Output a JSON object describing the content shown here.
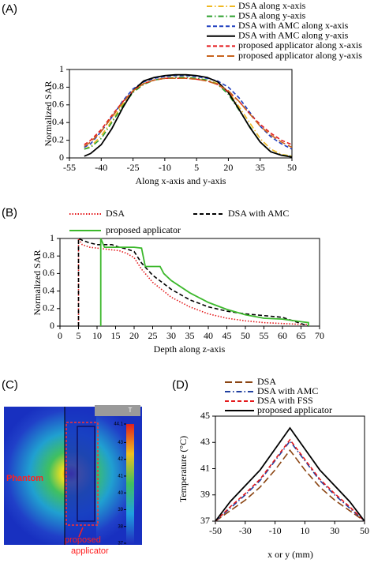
{
  "chart_data": [
    {
      "type": "line",
      "panel_label": "(A)",
      "ylabel": "Normalized SAR",
      "xlabel": "Along x-axis and y-axis",
      "xlim": [
        -55,
        50
      ],
      "xticks": [
        -55,
        -40,
        -25,
        -10,
        5,
        20,
        35,
        50
      ],
      "ylim": [
        0,
        1
      ],
      "yticks": [
        0,
        0.2,
        0.4,
        0.6,
        0.8,
        1
      ],
      "x": [
        -48,
        -45,
        -40,
        -35,
        -30,
        -25,
        -20,
        -15,
        -10,
        -5,
        0,
        5,
        10,
        15,
        20,
        25,
        30,
        35,
        40,
        45,
        50
      ],
      "series": [
        {
          "name": "DSA along x-axis",
          "color": "#f0b820",
          "style": "dashdot",
          "values": [
            0.1,
            0.13,
            0.25,
            0.42,
            0.6,
            0.75,
            0.84,
            0.88,
            0.9,
            0.91,
            0.91,
            0.9,
            0.88,
            0.84,
            0.75,
            0.58,
            0.4,
            0.22,
            0.1,
            0.04,
            0.02
          ]
        },
        {
          "name": "DSA along y-axis",
          "color": "#2ca02c",
          "style": "dashdot",
          "values": [
            0.1,
            0.12,
            0.22,
            0.4,
            0.58,
            0.74,
            0.83,
            0.88,
            0.9,
            0.91,
            0.91,
            0.9,
            0.88,
            0.83,
            0.72,
            0.54,
            0.36,
            0.18,
            0.07,
            0.03,
            0.02
          ]
        },
        {
          "name": "DSA with AMC along x-axis",
          "color": "#1f3fbf",
          "style": "dashed",
          "values": [
            0.12,
            0.16,
            0.3,
            0.46,
            0.64,
            0.78,
            0.86,
            0.9,
            0.92,
            0.93,
            0.93,
            0.92,
            0.9,
            0.87,
            0.8,
            0.68,
            0.52,
            0.36,
            0.24,
            0.16,
            0.1
          ]
        },
        {
          "name": "DSA with AMC along y-axis",
          "color": "#000000",
          "style": "solid",
          "values": [
            0.02,
            0.05,
            0.15,
            0.33,
            0.56,
            0.76,
            0.87,
            0.91,
            0.93,
            0.94,
            0.94,
            0.93,
            0.91,
            0.86,
            0.74,
            0.55,
            0.35,
            0.18,
            0.07,
            0.03,
            0.01
          ]
        },
        {
          "name": "proposed applicator along x-axis",
          "color": "#e41a1c",
          "style": "dashed",
          "values": [
            0.15,
            0.2,
            0.32,
            0.48,
            0.63,
            0.76,
            0.84,
            0.88,
            0.9,
            0.9,
            0.9,
            0.89,
            0.87,
            0.83,
            0.75,
            0.64,
            0.5,
            0.38,
            0.28,
            0.2,
            0.15
          ]
        },
        {
          "name": "proposed applicator along y-axis",
          "color": "#c8641e",
          "style": "longdash",
          "values": [
            0.13,
            0.18,
            0.3,
            0.46,
            0.62,
            0.76,
            0.84,
            0.88,
            0.9,
            0.9,
            0.9,
            0.89,
            0.87,
            0.83,
            0.76,
            0.64,
            0.5,
            0.36,
            0.26,
            0.18,
            0.12
          ]
        }
      ]
    },
    {
      "type": "line",
      "panel_label": "(B)",
      "ylabel": "Normalized SAR",
      "xlabel": "Depth along z-axis",
      "xlim": [
        0,
        70
      ],
      "xticks": [
        0,
        5,
        10,
        15,
        20,
        25,
        30,
        35,
        40,
        45,
        50,
        55,
        60,
        65,
        70
      ],
      "ylim": [
        0,
        1
      ],
      "yticks": [
        0,
        0.2,
        0.4,
        0.6,
        0.8,
        1
      ],
      "series": [
        {
          "name": "DSA",
          "color": "#e41a1c",
          "style": "dotted",
          "x": [
            5,
            5,
            6,
            8,
            10,
            12,
            14,
            16,
            18,
            20,
            22,
            25,
            30,
            35,
            40,
            45,
            50,
            55,
            60,
            65,
            67
          ],
          "values": [
            0,
            1,
            0.93,
            0.9,
            0.89,
            0.88,
            0.87,
            0.86,
            0.83,
            0.78,
            0.65,
            0.5,
            0.33,
            0.22,
            0.14,
            0.09,
            0.06,
            0.04,
            0.03,
            0.02,
            0.02
          ]
        },
        {
          "name": "DSA with AMC",
          "color": "#000000",
          "style": "dashed",
          "x": [
            5,
            5,
            6,
            8,
            10,
            12,
            14,
            16,
            18,
            20,
            22,
            25,
            30,
            35,
            40,
            45,
            50,
            55,
            60,
            65,
            67
          ],
          "values": [
            0,
            1,
            0.98,
            0.95,
            0.93,
            0.93,
            0.93,
            0.9,
            0.88,
            0.85,
            0.72,
            0.58,
            0.42,
            0.3,
            0.22,
            0.17,
            0.14,
            0.12,
            0.1,
            0.03,
            0
          ]
        },
        {
          "name": "proposed applicator",
          "color": "#3cb82c",
          "style": "solid",
          "x": [
            11,
            11,
            12,
            15,
            20,
            22,
            23,
            27,
            28,
            30,
            35,
            40,
            45,
            50,
            55,
            60,
            65,
            67,
            67
          ],
          "values": [
            0,
            1,
            0.9,
            0.9,
            0.9,
            0.89,
            0.68,
            0.68,
            0.6,
            0.52,
            0.38,
            0.27,
            0.19,
            0.13,
            0.09,
            0.08,
            0.05,
            0.04,
            0
          ]
        }
      ]
    },
    {
      "type": "image",
      "panel_label": "(C)",
      "phantom": "Phantom",
      "applicator": [
        "proposed",
        "applicator"
      ],
      "colorbar_title": "T",
      "colorbar_lim": [
        37,
        44.1
      ],
      "colorbar_ticks": [
        {
          "value": 44.1,
          "label": "44.1"
        },
        43,
        42,
        41,
        40,
        39,
        38,
        37
      ]
    },
    {
      "type": "line",
      "panel_label": "(D)",
      "ylabel": "Temperature (°C)",
      "xlabel": "x or y (mm)",
      "xlim": [
        -50,
        50
      ],
      "xticks": [
        -50,
        -30,
        -10,
        10,
        30,
        50
      ],
      "ylim": [
        37,
        45
      ],
      "yticks": [
        37,
        39,
        41,
        43,
        45
      ],
      "x": [
        -50,
        -40,
        -30,
        -20,
        -10,
        0,
        10,
        20,
        30,
        40,
        50
      ],
      "series": [
        {
          "name": "DSA",
          "color": "#8b4513",
          "style": "longdash",
          "values": [
            37,
            37.8,
            38.6,
            39.6,
            40.9,
            42.4,
            40.9,
            39.6,
            38.6,
            37.8,
            37
          ]
        },
        {
          "name": "DSA with AMC",
          "color": "#1f3f9f",
          "style": "dashdot",
          "values": [
            37,
            38,
            39,
            40.1,
            41.6,
            43.1,
            41.6,
            40.1,
            39,
            38,
            37
          ]
        },
        {
          "name": "DSA with FSS",
          "color": "#e41a1c",
          "style": "dashed",
          "values": [
            37,
            38.1,
            39.1,
            40.2,
            41.7,
            43.2,
            41.7,
            40.2,
            39.1,
            38.1,
            37
          ]
        },
        {
          "name": "proposed applicator",
          "color": "#000000",
          "style": "solid",
          "values": [
            37,
            38.5,
            39.7,
            40.9,
            42.5,
            44.1,
            42.5,
            40.9,
            39.7,
            38.5,
            37
          ]
        }
      ]
    }
  ]
}
